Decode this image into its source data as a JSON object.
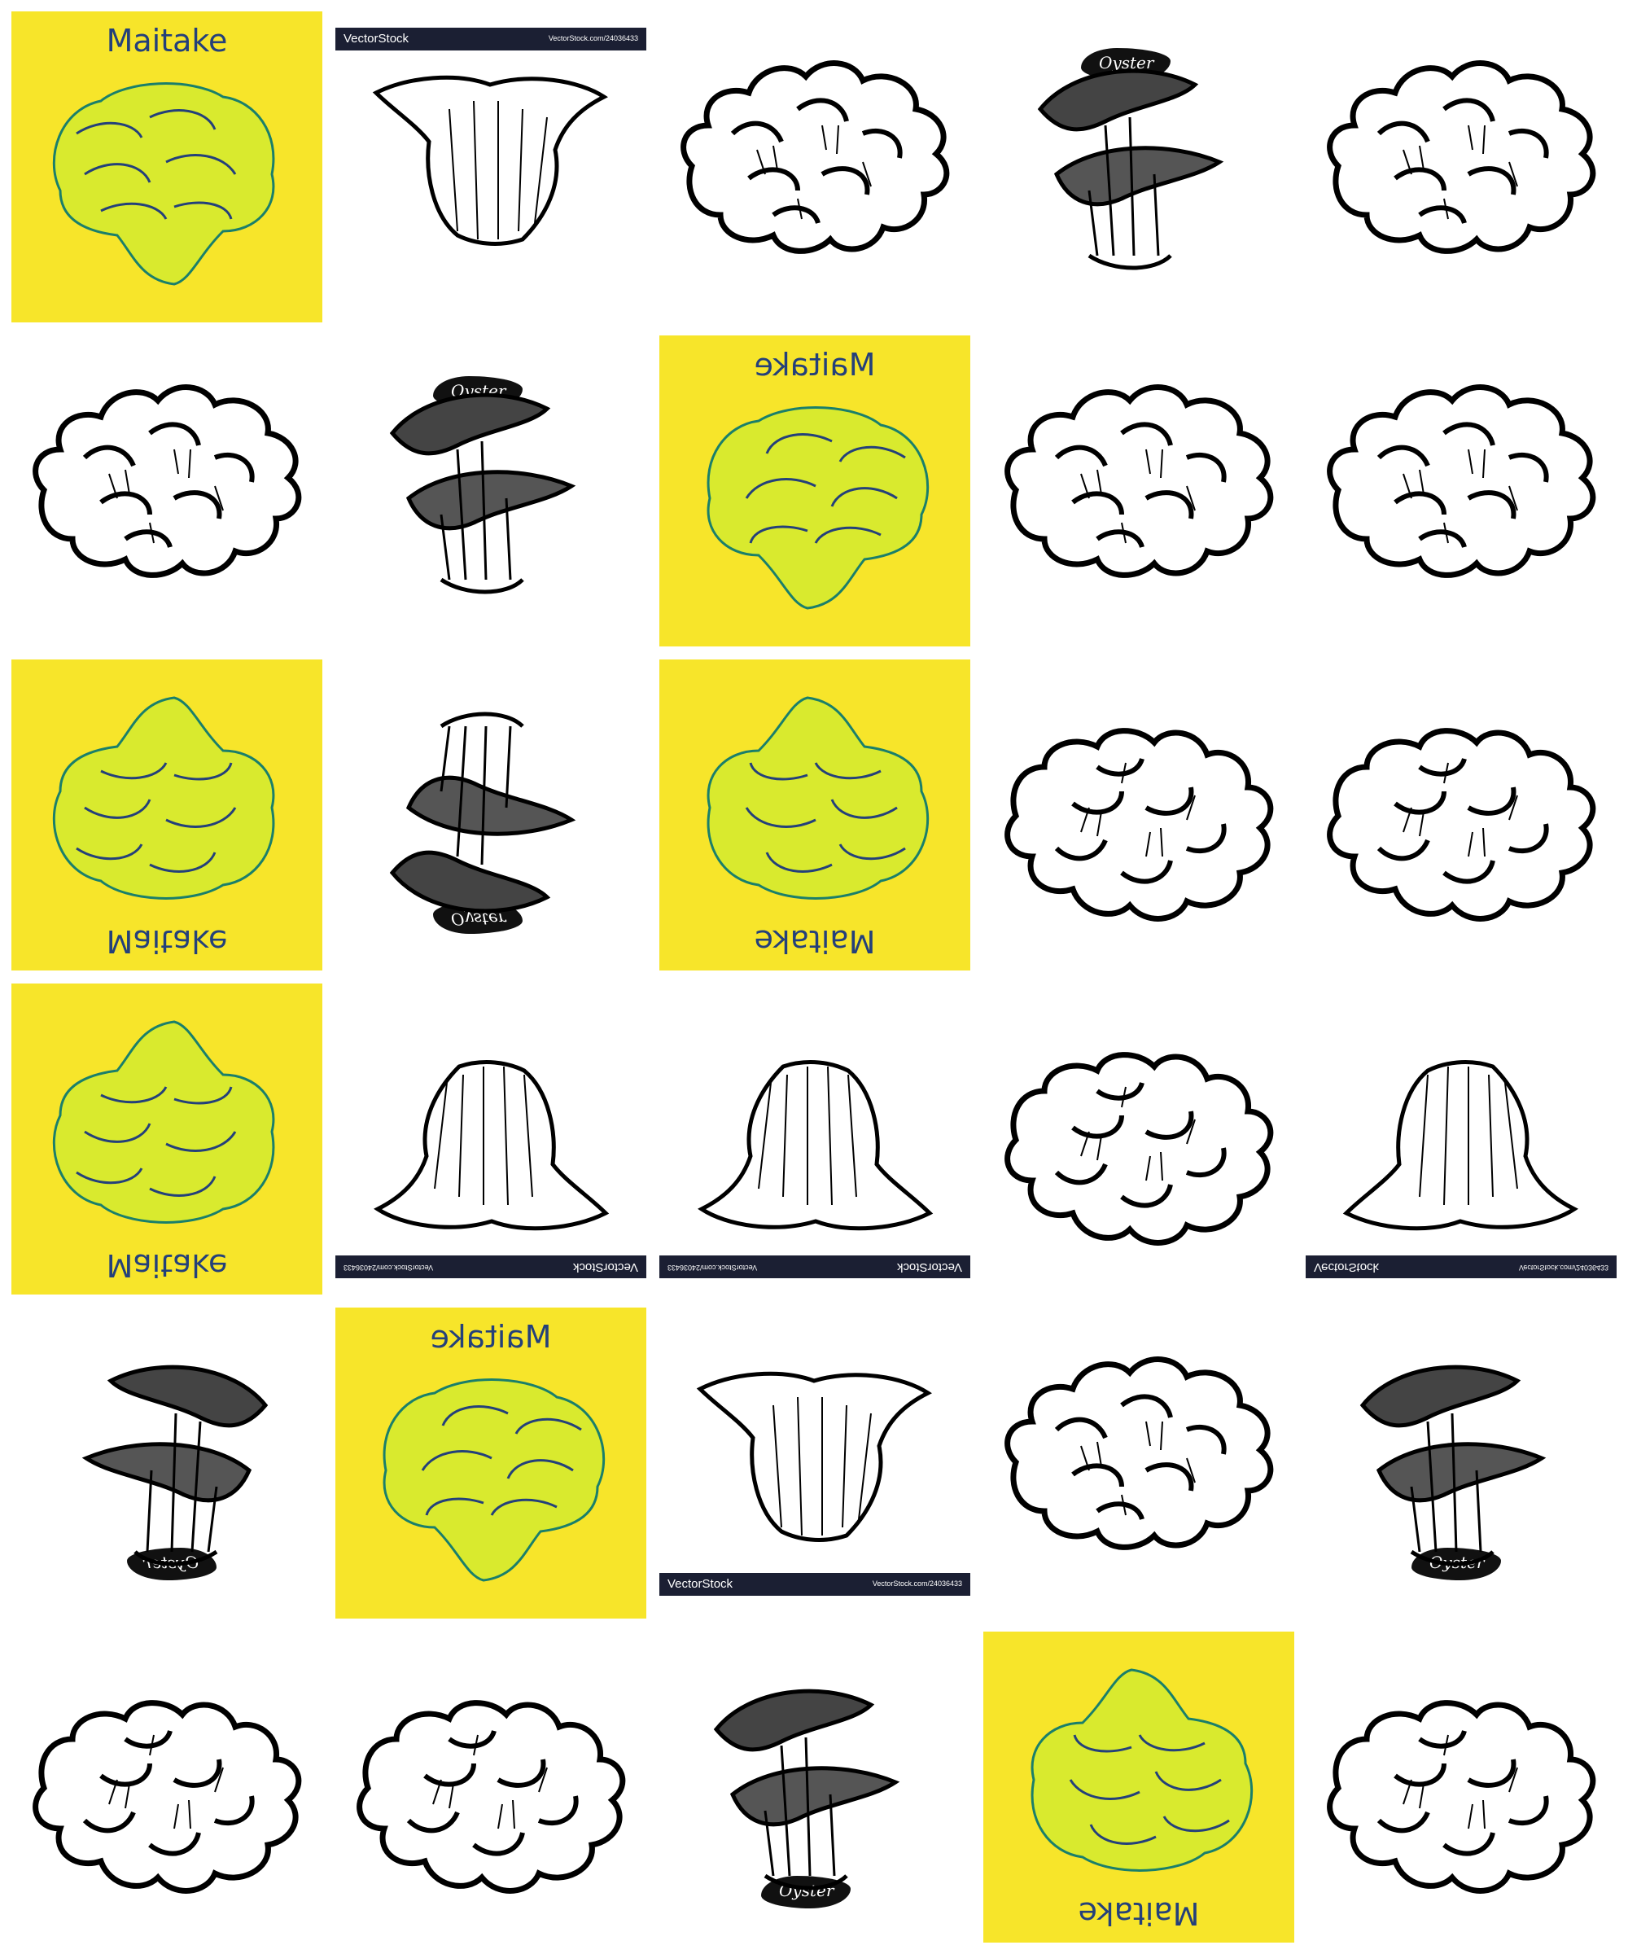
{
  "tiles": {
    "maitake_title": "Maitake",
    "oyster_badge": "Oyster",
    "vector_brand": "VectorStock",
    "vector_url": "VectorStock.com/24036433"
  },
  "colors": {
    "yellow": "#f7e52a",
    "ink_blue": "#24407a",
    "banner": "#1b1f33"
  }
}
